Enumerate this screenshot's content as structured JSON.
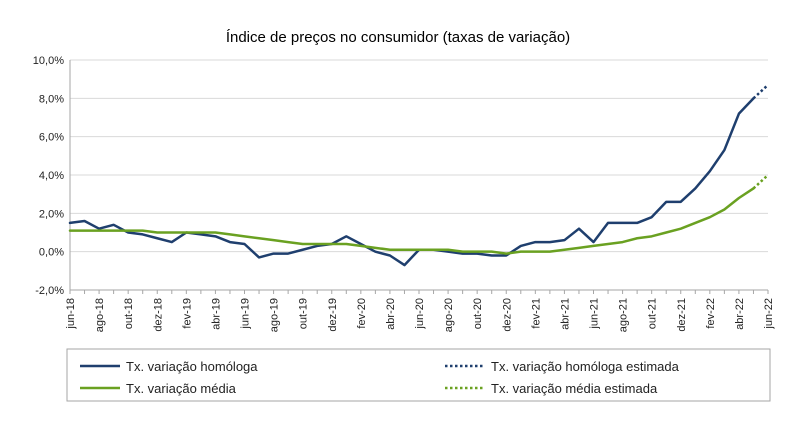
{
  "chart_data": {
    "type": "line",
    "title": "Índice de preços no consumidor  (taxas  de variação)",
    "xlabel": "",
    "ylabel": "",
    "ylim": [
      -2,
      10
    ],
    "yticks": [
      "-2,0%",
      "0,0%",
      "2,0%",
      "4,0%",
      "6,0%",
      "8,0%",
      "10,0%"
    ],
    "y_tick_values": [
      -2,
      0,
      2,
      4,
      6,
      8,
      10
    ],
    "x": [
      "jun-18",
      "jul-18",
      "ago-18",
      "set-18",
      "out-18",
      "nov-18",
      "dez-18",
      "jan-19",
      "fev-19",
      "mar-19",
      "abr-19",
      "mai-19",
      "jun-19",
      "jul-19",
      "ago-19",
      "set-19",
      "out-19",
      "nov-19",
      "dez-19",
      "jan-20",
      "fev-20",
      "mar-20",
      "abr-20",
      "mai-20",
      "jun-20",
      "jul-20",
      "ago-20",
      "set-20",
      "out-20",
      "nov-20",
      "dez-20",
      "jan-21",
      "fev-21",
      "mar-21",
      "abr-21",
      "mai-21",
      "jun-21",
      "jul-21",
      "ago-21",
      "set-21",
      "out-21",
      "nov-21",
      "dez-21",
      "jan-22",
      "fev-22",
      "mar-22",
      "abr-22",
      "mai-22",
      "jun-22"
    ],
    "xtick_labels": [
      "jun-18",
      "ago-18",
      "out-18",
      "dez-18",
      "fev-19",
      "abr-19",
      "jun-19",
      "ago-19",
      "out-19",
      "dez-19",
      "fev-20",
      "abr-20",
      "jun-20",
      "ago-20",
      "out-20",
      "dez-20",
      "fev-21",
      "abr-21",
      "jun-21",
      "ago-21",
      "out-21",
      "dez-21",
      "fev-22",
      "abr-22",
      "jun-22"
    ],
    "grid": "horizontal",
    "legend_position": "bottom",
    "series": [
      {
        "name": "Tx. variação homóloga",
        "color": "#1f3f6e",
        "style": "solid",
        "values": [
          1.5,
          1.6,
          1.2,
          1.4,
          1.0,
          0.9,
          0.7,
          0.5,
          1.0,
          0.9,
          0.8,
          0.5,
          0.4,
          -0.3,
          -0.1,
          -0.1,
          0.1,
          0.3,
          0.4,
          0.8,
          0.4,
          0.0,
          -0.2,
          -0.7,
          0.1,
          0.1,
          0.0,
          -0.1,
          -0.1,
          -0.2,
          -0.2,
          0.3,
          0.5,
          0.5,
          0.6,
          1.2,
          0.5,
          1.5,
          1.5,
          1.5,
          1.8,
          2.6,
          2.6,
          3.3,
          4.2,
          5.3,
          7.2,
          8.0,
          null
        ]
      },
      {
        "name": "Tx. variação homóloga estimada",
        "color": "#1f3f6e",
        "style": "dotted",
        "values": [
          null,
          null,
          null,
          null,
          null,
          null,
          null,
          null,
          null,
          null,
          null,
          null,
          null,
          null,
          null,
          null,
          null,
          null,
          null,
          null,
          null,
          null,
          null,
          null,
          null,
          null,
          null,
          null,
          null,
          null,
          null,
          null,
          null,
          null,
          null,
          null,
          null,
          null,
          null,
          null,
          null,
          null,
          null,
          null,
          null,
          null,
          null,
          8.0,
          8.7
        ]
      },
      {
        "name": "Tx. variação média",
        "color": "#6aa121",
        "style": "solid",
        "values": [
          1.1,
          1.1,
          1.1,
          1.1,
          1.1,
          1.1,
          1.0,
          1.0,
          1.0,
          1.0,
          1.0,
          0.9,
          0.8,
          0.7,
          0.6,
          0.5,
          0.4,
          0.4,
          0.4,
          0.4,
          0.3,
          0.2,
          0.1,
          0.1,
          0.1,
          0.1,
          0.1,
          0.0,
          0.0,
          0.0,
          -0.1,
          0.0,
          0.0,
          0.0,
          0.1,
          0.2,
          0.3,
          0.4,
          0.5,
          0.7,
          0.8,
          1.0,
          1.2,
          1.5,
          1.8,
          2.2,
          2.8,
          3.3,
          null
        ]
      },
      {
        "name": "Tx. variação média  estimada",
        "color": "#6aa121",
        "style": "dotted",
        "values": [
          null,
          null,
          null,
          null,
          null,
          null,
          null,
          null,
          null,
          null,
          null,
          null,
          null,
          null,
          null,
          null,
          null,
          null,
          null,
          null,
          null,
          null,
          null,
          null,
          null,
          null,
          null,
          null,
          null,
          null,
          null,
          null,
          null,
          null,
          null,
          null,
          null,
          null,
          null,
          null,
          null,
          null,
          null,
          null,
          null,
          null,
          null,
          3.3,
          4.0
        ]
      }
    ]
  }
}
